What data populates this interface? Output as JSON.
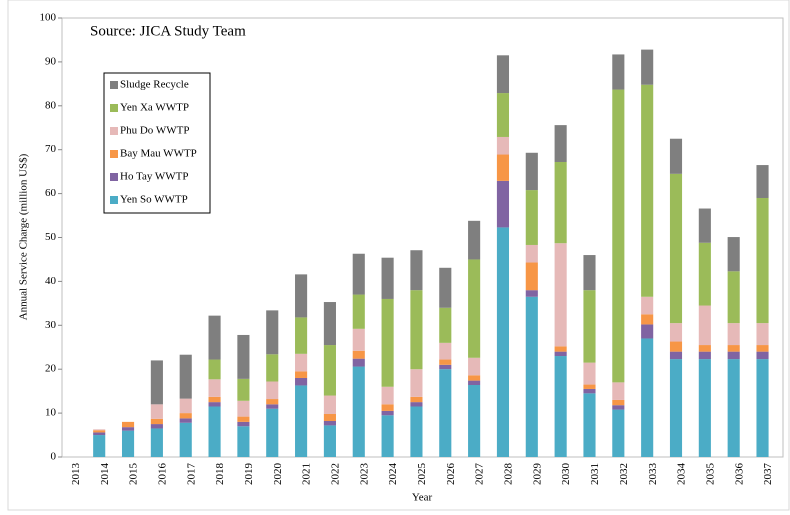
{
  "chart_data": {
    "type": "bar",
    "stacked": true,
    "annotation": "Source: JICA Study Team",
    "x_label": "Year",
    "y_label": "Annual Service Charge (million US$)",
    "categories": [
      "2013",
      "2014",
      "2015",
      "2016",
      "2017",
      "2018",
      "2019",
      "2020",
      "2021",
      "2022",
      "2023",
      "2024",
      "2025",
      "2026",
      "2027",
      "2028",
      "2029",
      "2030",
      "2031",
      "2032",
      "2033",
      "2034",
      "2035",
      "2036",
      "2037"
    ],
    "series": [
      {
        "name": "Yen So WWTP",
        "color": "#4bacc6",
        "values": [
          0,
          5,
          6,
          6.5,
          7.8,
          11.5,
          7,
          11,
          16.3,
          7.2,
          20.6,
          9.5,
          11.5,
          20,
          16.4,
          52.3,
          36.5,
          23,
          14.5,
          10.8,
          27,
          22.3,
          22.3,
          22.3,
          22.3
        ]
      },
      {
        "name": "Ho Tay WWTP",
        "color": "#8064a2",
        "values": [
          0,
          0.6,
          0.8,
          1,
          1,
          1,
          1,
          1,
          1.7,
          1,
          1.8,
          1,
          1,
          1,
          1,
          10.6,
          1.5,
          1,
          1,
          1,
          3.2,
          1.7,
          1.7,
          1.7,
          1.7
        ]
      },
      {
        "name": "Bay Mau WWTP",
        "color": "#f79646",
        "values": [
          0,
          0.5,
          1.2,
          1.2,
          1.2,
          1.2,
          1.2,
          1.2,
          1.5,
          1.6,
          1.8,
          1.5,
          1.2,
          1.2,
          1.2,
          6,
          6.3,
          1.2,
          1,
          1.2,
          2.3,
          2.3,
          1.5,
          1.5,
          1.5
        ]
      },
      {
        "name": "Phu Do WWTP",
        "color": "#e6b9b8",
        "values": [
          0,
          0.2,
          0,
          3.3,
          3.3,
          4,
          3.6,
          4,
          4,
          4.2,
          5,
          4,
          6.3,
          3.8,
          4,
          4,
          4,
          23.5,
          5,
          4,
          4,
          4.2,
          9,
          5,
          5
        ]
      },
      {
        "name": "Yen Xa WWTP",
        "color": "#9bbb59",
        "values": [
          0,
          0,
          0,
          0,
          0,
          4.5,
          5,
          6.2,
          8.3,
          11.5,
          7.8,
          20,
          18,
          8,
          22.4,
          10,
          12.5,
          18.5,
          16.5,
          66.7,
          48.3,
          34,
          14.3,
          11.8,
          28.5
        ]
      },
      {
        "name": "Sludge Recycle",
        "color": "#7f7f7f",
        "values": [
          0,
          0,
          0,
          10,
          10,
          10,
          10,
          10,
          9.8,
          9.8,
          9.3,
          9.4,
          9.1,
          9.1,
          8.8,
          8.6,
          8.5,
          8.4,
          8,
          8,
          8,
          8,
          7.8,
          7.8,
          7.5
        ]
      }
    ],
    "ylim": [
      0,
      100
    ],
    "yticks": [
      0,
      10,
      20,
      30,
      40,
      50,
      60,
      70,
      80,
      90,
      100
    ],
    "grid": false,
    "legend": "upper left"
  }
}
